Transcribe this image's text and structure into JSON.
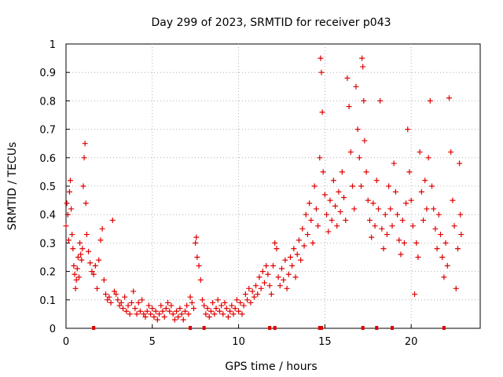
{
  "chart_data": {
    "type": "scatter",
    "title": "Day 299 of 2023, SRMTID for receiver p043",
    "xlabel": "GPS time / hours",
    "ylabel": "SRMTID / TECUs",
    "xlim": [
      0,
      24
    ],
    "ylim": [
      0,
      1
    ],
    "grid": true,
    "x_ticks": [
      0,
      5,
      10,
      15,
      20
    ],
    "y_ticks": [
      0,
      0.1,
      0.2,
      0.3,
      0.4,
      0.5,
      0.6,
      0.7,
      0.8,
      0.9,
      1
    ],
    "x_tick_labels": [
      "0",
      "5",
      "10",
      "15",
      "20"
    ],
    "y_tick_labels": [
      "0",
      "0.1",
      "0.2",
      "0.3",
      "0.4",
      "0.5",
      "0.6",
      "0.7",
      "0.8",
      "0.9",
      "1"
    ],
    "marker": "+",
    "color": "#e00000",
    "series": [
      {
        "name": "SRMTID",
        "points": [
          [
            0.0,
            0.36
          ],
          [
            0.05,
            0.44
          ],
          [
            0.1,
            0.4
          ],
          [
            0.15,
            0.31
          ],
          [
            0.2,
            0.48
          ],
          [
            0.25,
            0.52
          ],
          [
            0.3,
            0.42
          ],
          [
            0.35,
            0.33
          ],
          [
            0.4,
            0.28
          ],
          [
            0.45,
            0.22
          ],
          [
            0.5,
            0.19
          ],
          [
            0.55,
            0.14
          ],
          [
            0.6,
            0.17
          ],
          [
            0.65,
            0.21
          ],
          [
            0.7,
            0.25
          ],
          [
            0.75,
            0.18
          ],
          [
            0.8,
            0.3
          ],
          [
            0.85,
            0.26
          ],
          [
            0.9,
            0.24
          ],
          [
            0.95,
            0.28
          ],
          [
            1.0,
            0.5
          ],
          [
            1.05,
            0.6
          ],
          [
            1.1,
            0.65
          ],
          [
            1.15,
            0.44
          ],
          [
            1.2,
            0.33
          ],
          [
            1.3,
            0.27
          ],
          [
            1.4,
            0.23
          ],
          [
            1.5,
            0.2
          ],
          [
            1.6,
            0.19
          ],
          [
            1.7,
            0.22
          ],
          [
            1.8,
            0.14
          ],
          [
            1.9,
            0.24
          ],
          [
            2.0,
            0.31
          ],
          [
            2.1,
            0.35
          ],
          [
            2.2,
            0.17
          ],
          [
            2.3,
            0.12
          ],
          [
            2.4,
            0.1
          ],
          [
            2.5,
            0.11
          ],
          [
            2.6,
            0.09
          ],
          [
            2.7,
            0.38
          ],
          [
            2.8,
            0.13
          ],
          [
            2.9,
            0.12
          ],
          [
            3.0,
            0.1
          ],
          [
            3.1,
            0.08
          ],
          [
            3.2,
            0.09
          ],
          [
            3.3,
            0.07
          ],
          [
            3.4,
            0.11
          ],
          [
            3.5,
            0.06
          ],
          [
            3.6,
            0.08
          ],
          [
            3.7,
            0.05
          ],
          [
            3.8,
            0.09
          ],
          [
            3.9,
            0.13
          ],
          [
            4.0,
            0.07
          ],
          [
            4.1,
            0.05
          ],
          [
            4.2,
            0.09
          ],
          [
            4.3,
            0.06
          ],
          [
            4.4,
            0.1
          ],
          [
            4.5,
            0.05
          ],
          [
            4.6,
            0.04
          ],
          [
            4.7,
            0.06
          ],
          [
            4.8,
            0.08
          ],
          [
            4.9,
            0.05
          ],
          [
            5.0,
            0.07
          ],
          [
            5.1,
            0.04
          ],
          [
            5.2,
            0.06
          ],
          [
            5.3,
            0.03
          ],
          [
            5.4,
            0.05
          ],
          [
            5.5,
            0.08
          ],
          [
            5.6,
            0.06
          ],
          [
            5.7,
            0.04
          ],
          [
            5.8,
            0.07
          ],
          [
            5.9,
            0.09
          ],
          [
            6.0,
            0.06
          ],
          [
            6.1,
            0.08
          ],
          [
            6.2,
            0.05
          ],
          [
            6.3,
            0.03
          ],
          [
            6.4,
            0.06
          ],
          [
            6.5,
            0.04
          ],
          [
            6.6,
            0.07
          ],
          [
            6.7,
            0.05
          ],
          [
            6.8,
            0.03
          ],
          [
            6.9,
            0.06
          ],
          [
            7.0,
            0.08
          ],
          [
            7.1,
            0.05
          ],
          [
            7.2,
            0.11
          ],
          [
            7.3,
            0.09
          ],
          [
            7.4,
            0.07
          ],
          [
            7.5,
            0.3
          ],
          [
            7.55,
            0.32
          ],
          [
            7.6,
            0.25
          ],
          [
            7.7,
            0.22
          ],
          [
            7.8,
            0.17
          ],
          [
            7.9,
            0.1
          ],
          [
            8.0,
            0.08
          ],
          [
            8.1,
            0.05
          ],
          [
            8.2,
            0.07
          ],
          [
            8.3,
            0.04
          ],
          [
            8.4,
            0.06
          ],
          [
            8.5,
            0.09
          ],
          [
            8.6,
            0.05
          ],
          [
            8.7,
            0.07
          ],
          [
            8.8,
            0.1
          ],
          [
            8.9,
            0.06
          ],
          [
            9.0,
            0.08
          ],
          [
            9.1,
            0.05
          ],
          [
            9.2,
            0.09
          ],
          [
            9.3,
            0.07
          ],
          [
            9.4,
            0.04
          ],
          [
            9.5,
            0.06
          ],
          [
            9.6,
            0.08
          ],
          [
            9.7,
            0.05
          ],
          [
            9.8,
            0.07
          ],
          [
            9.9,
            0.1
          ],
          [
            10.0,
            0.06
          ],
          [
            10.1,
            0.09
          ],
          [
            10.2,
            0.05
          ],
          [
            10.3,
            0.08
          ],
          [
            10.4,
            0.12
          ],
          [
            10.5,
            0.1
          ],
          [
            10.6,
            0.14
          ],
          [
            10.7,
            0.09
          ],
          [
            10.8,
            0.13
          ],
          [
            10.9,
            0.11
          ],
          [
            11.0,
            0.15
          ],
          [
            11.1,
            0.12
          ],
          [
            11.2,
            0.18
          ],
          [
            11.3,
            0.14
          ],
          [
            11.4,
            0.2
          ],
          [
            11.5,
            0.16
          ],
          [
            11.6,
            0.22
          ],
          [
            11.7,
            0.19
          ],
          [
            11.8,
            0.15
          ],
          [
            11.9,
            0.12
          ],
          [
            12.0,
            0.22
          ],
          [
            12.1,
            0.3
          ],
          [
            12.2,
            0.28
          ],
          [
            12.3,
            0.18
          ],
          [
            12.4,
            0.15
          ],
          [
            12.5,
            0.21
          ],
          [
            12.6,
            0.17
          ],
          [
            12.7,
            0.24
          ],
          [
            12.8,
            0.14
          ],
          [
            12.9,
            0.19
          ],
          [
            13.0,
            0.25
          ],
          [
            13.1,
            0.22
          ],
          [
            13.2,
            0.28
          ],
          [
            13.3,
            0.18
          ],
          [
            13.4,
            0.26
          ],
          [
            13.5,
            0.31
          ],
          [
            13.6,
            0.24
          ],
          [
            13.7,
            0.35
          ],
          [
            13.8,
            0.29
          ],
          [
            13.9,
            0.4
          ],
          [
            14.0,
            0.33
          ],
          [
            14.1,
            0.44
          ],
          [
            14.2,
            0.38
          ],
          [
            14.3,
            0.3
          ],
          [
            14.4,
            0.5
          ],
          [
            14.5,
            0.42
          ],
          [
            14.6,
            0.36
          ],
          [
            14.7,
            0.6
          ],
          [
            14.75,
            0.95
          ],
          [
            14.8,
            0.9
          ],
          [
            14.85,
            0.76
          ],
          [
            14.9,
            0.55
          ],
          [
            15.0,
            0.47
          ],
          [
            15.1,
            0.4
          ],
          [
            15.2,
            0.34
          ],
          [
            15.3,
            0.45
          ],
          [
            15.4,
            0.38
          ],
          [
            15.5,
            0.52
          ],
          [
            15.6,
            0.43
          ],
          [
            15.7,
            0.36
          ],
          [
            15.8,
            0.48
          ],
          [
            15.9,
            0.41
          ],
          [
            16.0,
            0.55
          ],
          [
            16.1,
            0.46
          ],
          [
            16.2,
            0.38
          ],
          [
            16.3,
            0.88
          ],
          [
            16.4,
            0.78
          ],
          [
            16.5,
            0.62
          ],
          [
            16.6,
            0.5
          ],
          [
            16.7,
            0.42
          ],
          [
            16.8,
            0.85
          ],
          [
            16.9,
            0.7
          ],
          [
            17.0,
            0.6
          ],
          [
            17.1,
            0.5
          ],
          [
            17.15,
            0.95
          ],
          [
            17.2,
            0.92
          ],
          [
            17.25,
            0.8
          ],
          [
            17.3,
            0.66
          ],
          [
            17.4,
            0.55
          ],
          [
            17.5,
            0.45
          ],
          [
            17.6,
            0.38
          ],
          [
            17.7,
            0.32
          ],
          [
            17.8,
            0.44
          ],
          [
            17.9,
            0.36
          ],
          [
            18.0,
            0.52
          ],
          [
            18.1,
            0.42
          ],
          [
            18.2,
            0.8
          ],
          [
            18.3,
            0.35
          ],
          [
            18.4,
            0.28
          ],
          [
            18.5,
            0.4
          ],
          [
            18.6,
            0.33
          ],
          [
            18.7,
            0.5
          ],
          [
            18.8,
            0.42
          ],
          [
            18.9,
            0.36
          ],
          [
            19.0,
            0.58
          ],
          [
            19.1,
            0.48
          ],
          [
            19.2,
            0.4
          ],
          [
            19.3,
            0.31
          ],
          [
            19.4,
            0.26
          ],
          [
            19.5,
            0.38
          ],
          [
            19.6,
            0.3
          ],
          [
            19.7,
            0.44
          ],
          [
            19.8,
            0.7
          ],
          [
            19.9,
            0.55
          ],
          [
            20.0,
            0.45
          ],
          [
            20.1,
            0.36
          ],
          [
            20.2,
            0.12
          ],
          [
            20.3,
            0.3
          ],
          [
            20.4,
            0.25
          ],
          [
            20.5,
            0.62
          ],
          [
            20.6,
            0.48
          ],
          [
            20.7,
            0.38
          ],
          [
            20.8,
            0.52
          ],
          [
            20.9,
            0.42
          ],
          [
            21.0,
            0.6
          ],
          [
            21.1,
            0.8
          ],
          [
            21.2,
            0.5
          ],
          [
            21.3,
            0.42
          ],
          [
            21.4,
            0.35
          ],
          [
            21.5,
            0.28
          ],
          [
            21.6,
            0.4
          ],
          [
            21.7,
            0.33
          ],
          [
            21.8,
            0.25
          ],
          [
            21.9,
            0.18
          ],
          [
            22.0,
            0.3
          ],
          [
            22.1,
            0.22
          ],
          [
            22.2,
            0.81
          ],
          [
            22.3,
            0.62
          ],
          [
            22.4,
            0.45
          ],
          [
            22.5,
            0.36
          ],
          [
            22.6,
            0.14
          ],
          [
            22.7,
            0.28
          ],
          [
            22.8,
            0.58
          ],
          [
            22.85,
            0.4
          ],
          [
            22.9,
            0.33
          ]
        ]
      }
    ],
    "baseline_marks_x": [
      1.6,
      7.2,
      8.0,
      11.8,
      12.1,
      14.7,
      14.8,
      17.2,
      18.0,
      18.9,
      21.9
    ]
  }
}
